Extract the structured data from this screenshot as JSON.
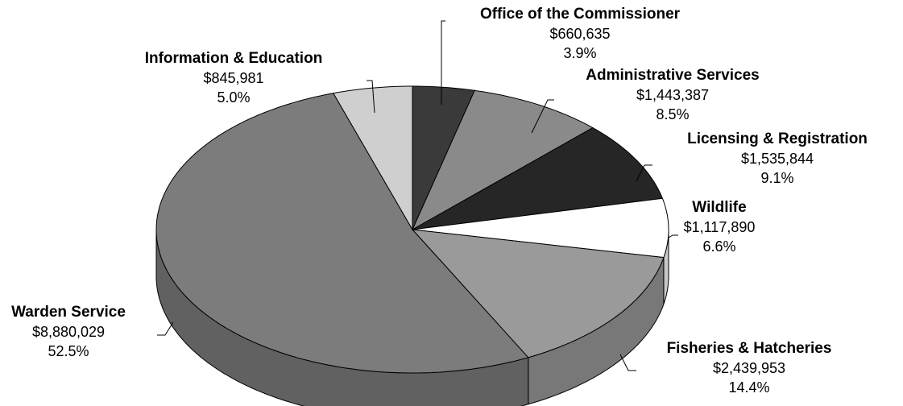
{
  "chart_data": {
    "type": "pie3d",
    "categories": [
      "Office of the Commissioner",
      "Administrative Services",
      "Licensing & Registration",
      "Wildlife",
      "Fisheries & Hatcheries",
      "Warden Service",
      "Information & Education"
    ],
    "values": [
      660635,
      1443387,
      1535844,
      1117890,
      2439953,
      8880029,
      845981
    ],
    "value_labels": [
      "$660,635",
      "$1,443,387",
      "$1,535,844",
      "$1,117,890",
      "$2,439,953",
      "$8,880,029",
      "$845,981"
    ],
    "percents": [
      3.9,
      8.5,
      9.1,
      6.6,
      14.4,
      52.5,
      5.0
    ],
    "percent_labels": [
      "3.9%",
      "8.5%",
      "9.1%",
      "6.6%",
      "14.4%",
      "52.5%",
      "5.0%"
    ],
    "colors": [
      "#3a3a3a",
      "#8a8a8a",
      "#262626",
      "#ffffff",
      "#9a9a9a",
      "#7c7c7c",
      "#cfcfcf"
    ]
  }
}
